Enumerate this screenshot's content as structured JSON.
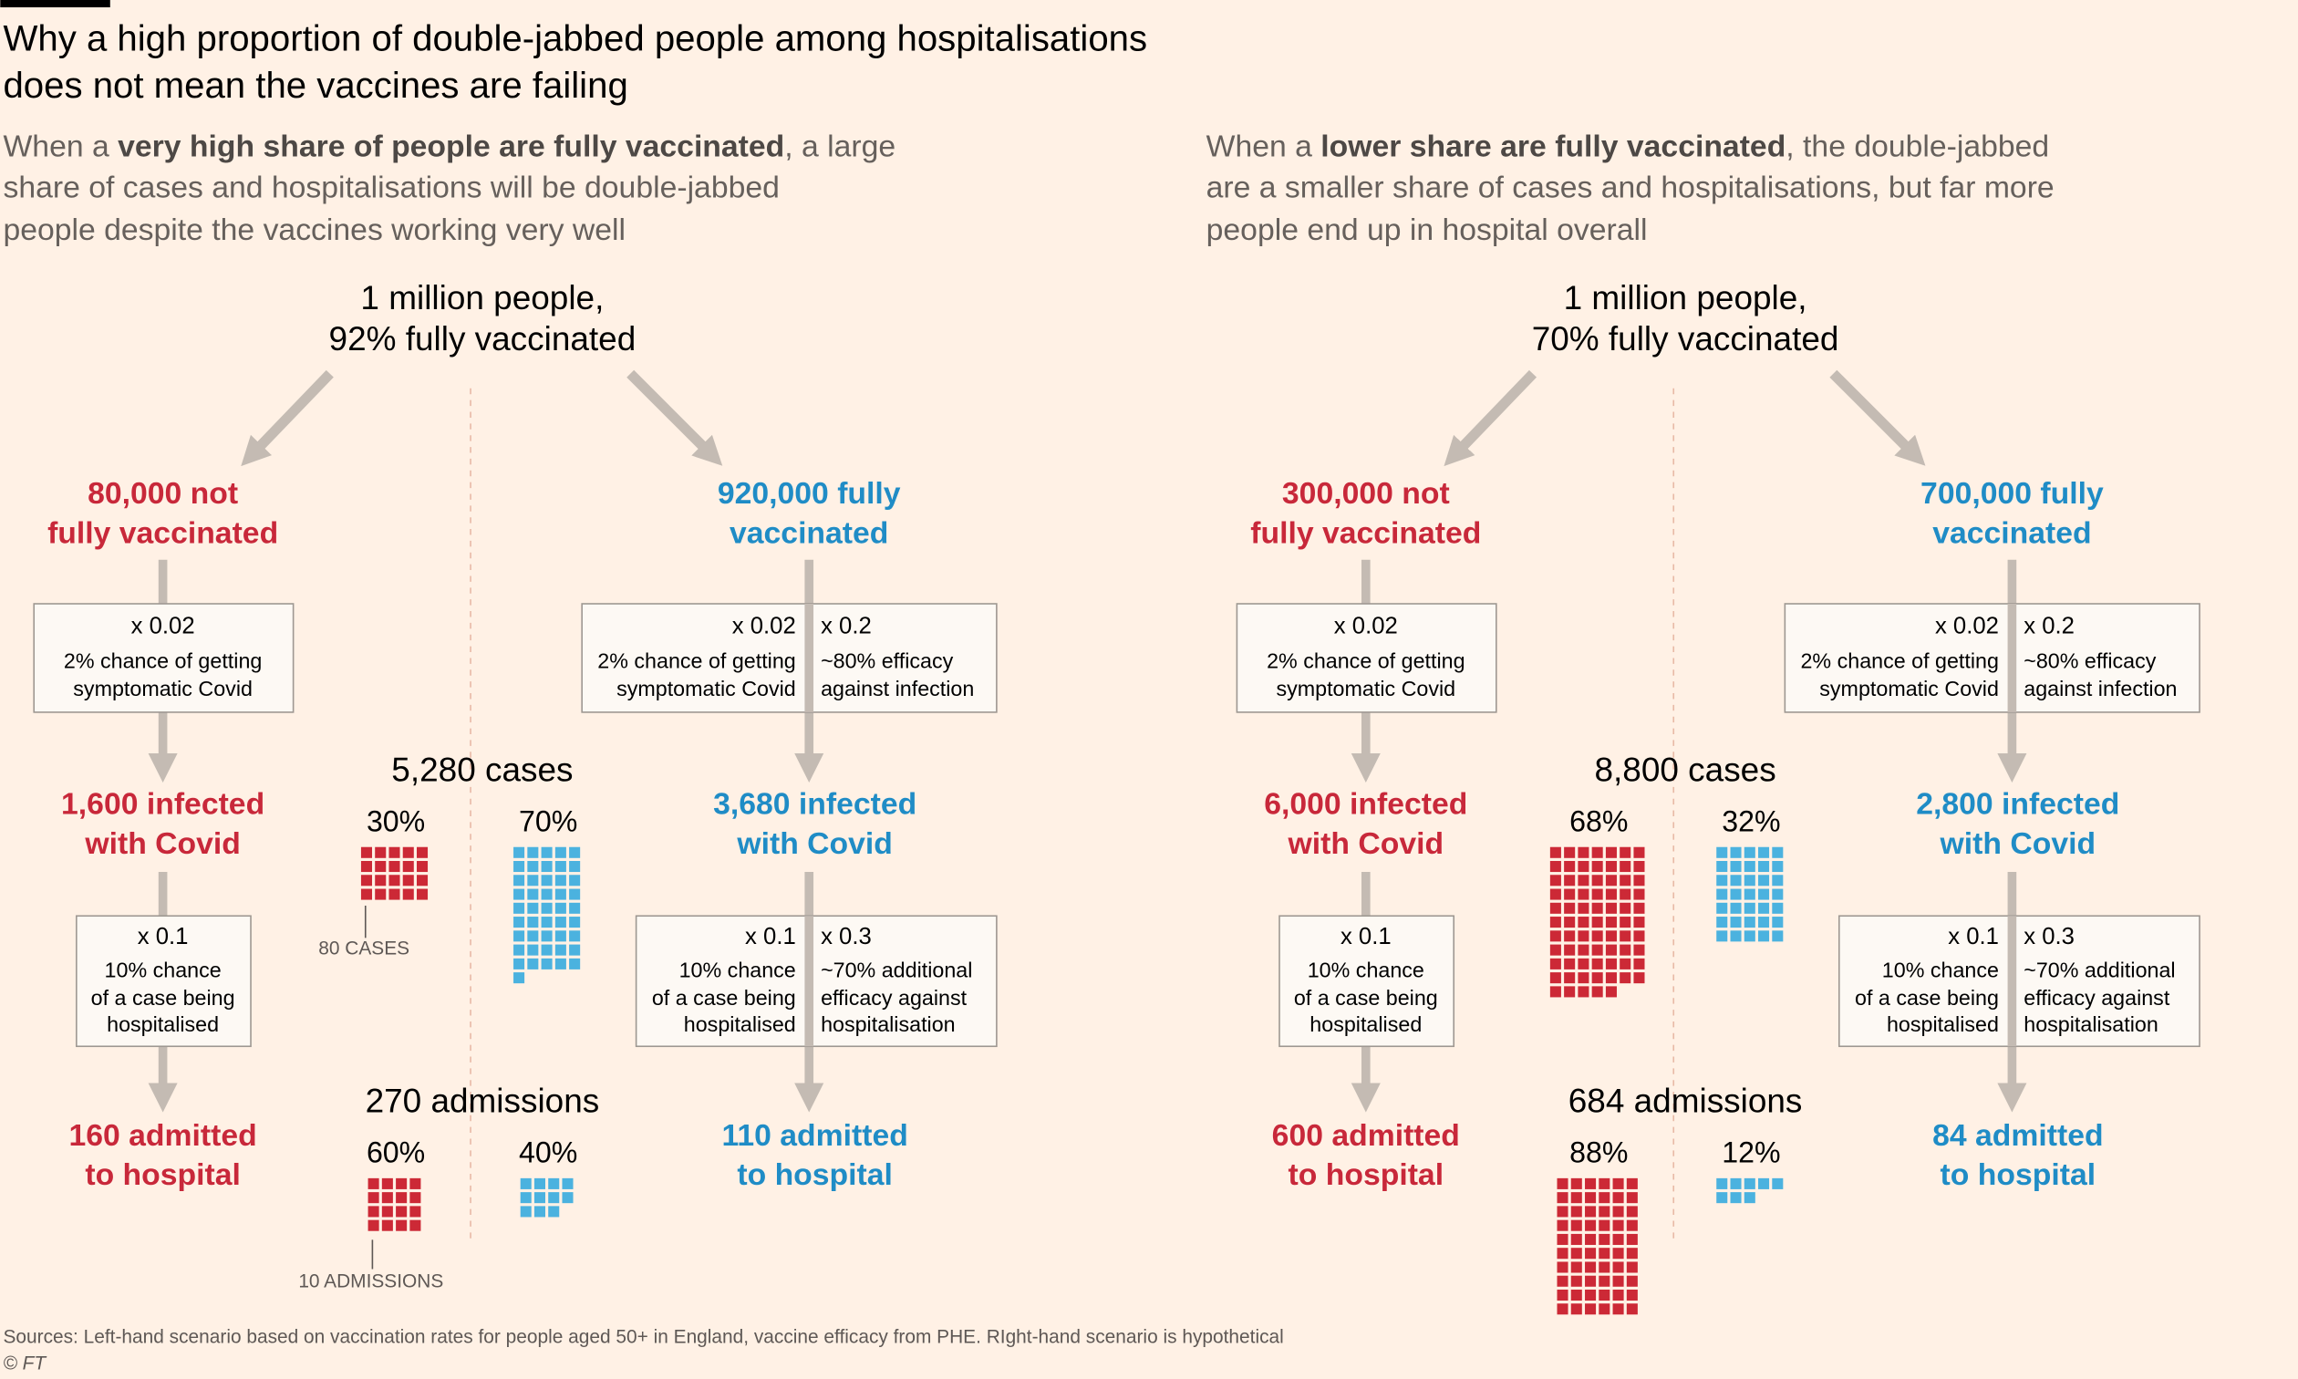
{
  "header": {
    "title": [
      "Why a high proportion of double-jabbed people among hospitalisations",
      "does not mean the vaccines are failing"
    ]
  },
  "scenarios": [
    {
      "intro": [
        [
          {
            "text": "When a "
          },
          {
            "text": "very high share of people are fully vaccinated",
            "bold": true
          },
          {
            "text": ", a large"
          }
        ],
        [
          {
            "text": "share of cases and hospitalisations will be double-jabbed"
          }
        ],
        [
          {
            "text": "people despite the vaccines working very well"
          }
        ]
      ],
      "population": [
        "1 million people,",
        "92% fully vaccinated"
      ],
      "not_vaccinated": {
        "label": [
          "80,000 not",
          "fully vaccinated"
        ],
        "step1": {
          "factor": "x 0.02",
          "text": [
            "2% chance of getting",
            "symptomatic Covid"
          ]
        },
        "infected": [
          "1,600 infected",
          "with Covid"
        ],
        "step2": {
          "factor": "x 0.1",
          "text": [
            "10% chance",
            "of a case being",
            "hospitalised"
          ]
        },
        "admitted": [
          "160 admitted",
          "to hospital"
        ]
      },
      "vaccinated": {
        "label": [
          "920,000 fully",
          "vaccinated"
        ],
        "step1": [
          {
            "factor": "x 0.02",
            "text": [
              "2% chance of getting",
              "symptomatic Covid"
            ]
          },
          {
            "factor": "x 0.2",
            "text": [
              "~80% efficacy",
              "against infection"
            ]
          }
        ],
        "infected": [
          "3,680 infected",
          "with Covid"
        ],
        "step2": [
          {
            "factor": "x 0.1",
            "text": [
              "10% chance",
              "of a case being",
              "hospitalised"
            ]
          },
          {
            "factor": "x 0.3",
            "text": [
              "~70% additional",
              "efficacy against",
              "hospitalisation"
            ]
          }
        ],
        "admitted": [
          "110 admitted",
          "to hospital"
        ]
      },
      "cases": {
        "label": "5,280 cases",
        "unvaccinated": {
          "share": "30%",
          "squares": 20
        },
        "vaccinated": {
          "share": "70%",
          "squares": 46
        },
        "unit": "80 CASES"
      },
      "admissions": {
        "label": "270 admissions",
        "unvaccinated": {
          "share": "60%",
          "squares": 16
        },
        "vaccinated": {
          "share": "40%",
          "squares": 11
        },
        "unit": "10 ADMISSIONS"
      }
    },
    {
      "intro": [
        [
          {
            "text": "When a "
          },
          {
            "text": "lower share are fully vaccinated",
            "bold": true
          },
          {
            "text": ", the double-jabbed"
          }
        ],
        [
          {
            "text": "are a smaller share of cases and hospitalisations, but far more"
          }
        ],
        [
          {
            "text": "people end up in hospital overall"
          }
        ]
      ],
      "population": [
        "1 million people,",
        "70% fully vaccinated"
      ],
      "not_vaccinated": {
        "label": [
          "300,000 not",
          "fully vaccinated"
        ],
        "step1": {
          "factor": "x 0.02",
          "text": [
            "2% chance of getting",
            "symptomatic Covid"
          ]
        },
        "infected": [
          "6,000 infected",
          "with Covid"
        ],
        "step2": {
          "factor": "x 0.1",
          "text": [
            "10% chance",
            "of a case being",
            "hospitalised"
          ]
        },
        "admitted": [
          "600 admitted",
          "to hospital"
        ]
      },
      "vaccinated": {
        "label": [
          "700,000 fully",
          "vaccinated"
        ],
        "step1": [
          {
            "factor": "x 0.02",
            "text": [
              "2% chance of getting",
              "symptomatic Covid"
            ]
          },
          {
            "factor": "x 0.2",
            "text": [
              "~80% efficacy",
              "against infection"
            ]
          }
        ],
        "infected": [
          "2,800 infected",
          "with Covid"
        ],
        "step2": [
          {
            "factor": "x 0.1",
            "text": [
              "10% chance",
              "of a case being",
              "hospitalised"
            ]
          },
          {
            "factor": "x 0.3",
            "text": [
              "~70% additional",
              "efficacy against",
              "hospitalisation"
            ]
          }
        ],
        "admitted": [
          "84 admitted",
          "to hospital"
        ]
      },
      "cases": {
        "label": "8,800 cases",
        "unvaccinated": {
          "share": "68%",
          "squares": 75
        },
        "vaccinated": {
          "share": "32%",
          "squares": 35
        }
      },
      "admissions": {
        "label": "684 admissions",
        "unvaccinated": {
          "share": "88%",
          "squares": 60
        },
        "vaccinated": {
          "share": "12%",
          "squares": 8
        }
      }
    }
  ],
  "footer": {
    "sources": "Sources: Left-hand scenario based on vaccination rates for people aged 50+ in England, vaccine efficacy from PHE. RIght-hand scenario is hypothetical",
    "credit": "© FT"
  }
}
